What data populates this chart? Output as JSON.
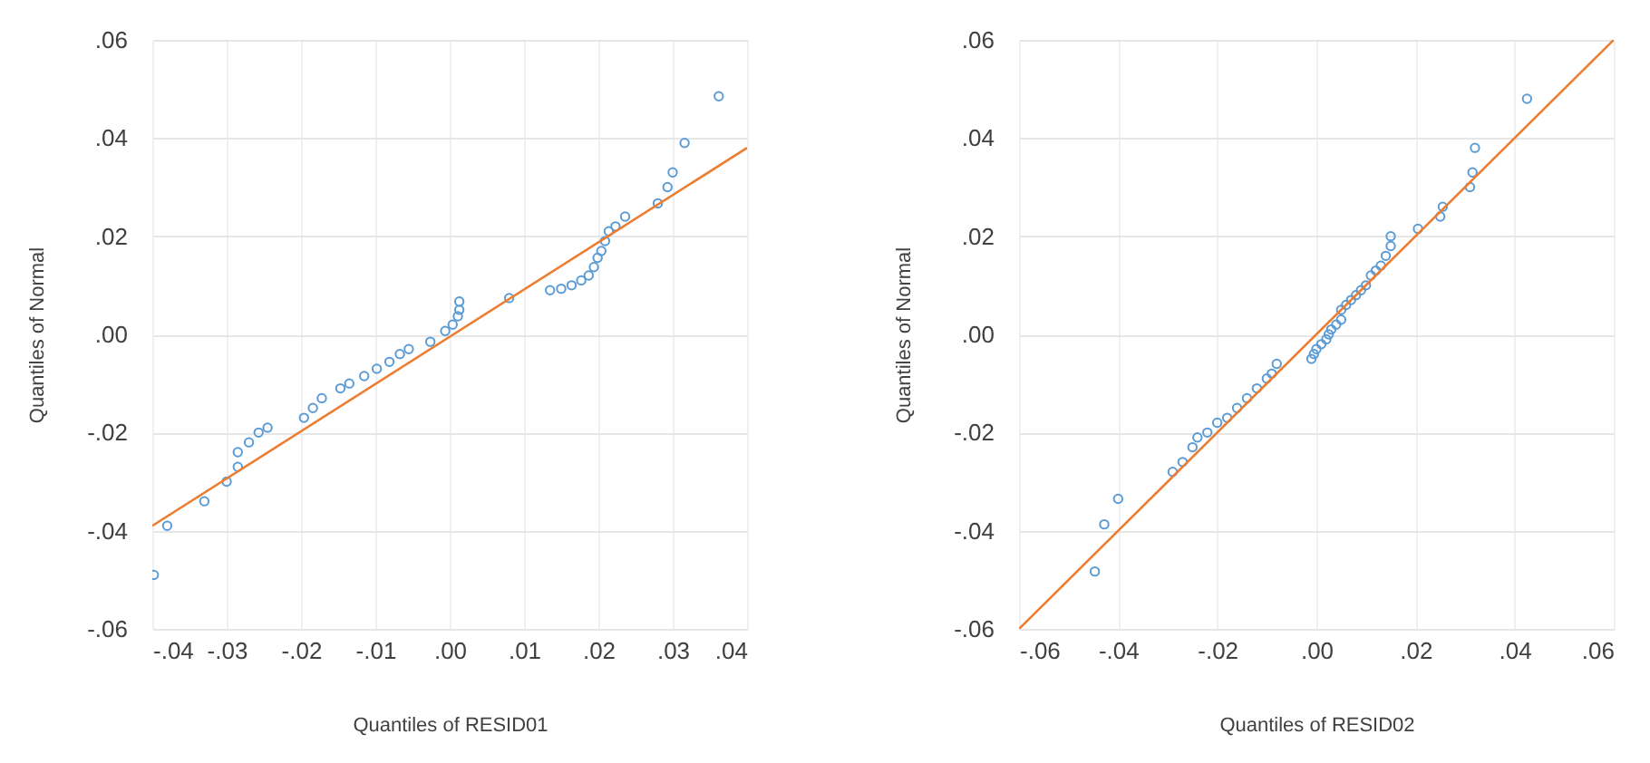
{
  "chart_data": [
    {
      "type": "scatter",
      "xlabel": "Quantiles of RESID01",
      "ylabel": "Quantiles of Normal",
      "xlim": [
        -0.04,
        0.04
      ],
      "ylim": [
        -0.06,
        0.06
      ],
      "xticks": [
        {
          "value": -0.04,
          "label": "-.04"
        },
        {
          "value": -0.03,
          "label": "-.03"
        },
        {
          "value": -0.02,
          "label": "-.02"
        },
        {
          "value": -0.01,
          "label": "-.01"
        },
        {
          "value": 0,
          "label": ".00"
        },
        {
          "value": 0.01,
          "label": ".01"
        },
        {
          "value": 0.02,
          "label": ".02"
        },
        {
          "value": 0.03,
          "label": ".03"
        },
        {
          "value": 0.04,
          "label": ".04"
        }
      ],
      "yticks": [
        {
          "value": -0.06,
          "label": "-.06"
        },
        {
          "value": -0.04,
          "label": "-.04"
        },
        {
          "value": -0.02,
          "label": "-.02"
        },
        {
          "value": 0,
          "label": ".00"
        },
        {
          "value": 0.02,
          "label": ".02"
        },
        {
          "value": 0.04,
          "label": ".04"
        },
        {
          "value": 0.06,
          "label": ".06"
        }
      ],
      "grid": true,
      "series": [
        {
          "marker": "circle",
          "color": "#5b9bd5",
          "x": [
            -0.0398,
            -0.038,
            -0.033,
            -0.03,
            -0.0285,
            -0.0285,
            -0.027,
            -0.0257,
            -0.0245,
            -0.0196,
            -0.0184,
            -0.0172,
            -0.0147,
            -0.0135,
            -0.0115,
            -0.0098,
            -0.0081,
            -0.0067,
            -0.0055,
            -0.0026,
            -0.0006,
            0.0004,
            0.0011,
            0.0013,
            0.0013,
            0.008,
            0.0135,
            0.015,
            0.0164,
            0.0177,
            0.0187,
            0.0194,
            0.0199,
            0.0204,
            0.0209,
            0.0214,
            0.0223,
            0.0236,
            0.028,
            0.0293,
            0.03,
            0.0316,
            0.0362
          ],
          "values": [
            -0.049,
            -0.039,
            -0.034,
            -0.03,
            -0.027,
            -0.024,
            -0.022,
            -0.02,
            -0.019,
            -0.017,
            -0.015,
            -0.013,
            -0.011,
            -0.01,
            -0.0085,
            -0.007,
            -0.0056,
            -0.004,
            -0.003,
            -0.0015,
            0.0007,
            0.002,
            0.0037,
            0.005,
            0.0067,
            0.0074,
            0.009,
            0.0093,
            0.01,
            0.011,
            0.012,
            0.0137,
            0.0156,
            0.017,
            0.019,
            0.021,
            0.022,
            0.024,
            0.0267,
            0.03,
            0.033,
            0.039,
            0.0485
          ]
        },
        {
          "type": "line",
          "color": "#ed7d31",
          "x": [
            -0.04,
            0.04
          ],
          "values": [
            -0.039,
            0.038
          ]
        }
      ]
    },
    {
      "type": "scatter",
      "xlabel": "Quantiles of RESID02",
      "ylabel": "Quantiles of Normal",
      "xlim": [
        -0.06,
        0.06
      ],
      "ylim": [
        -0.06,
        0.06
      ],
      "xticks": [
        {
          "value": -0.06,
          "label": "-.06"
        },
        {
          "value": -0.04,
          "label": "-.04"
        },
        {
          "value": -0.02,
          "label": "-.02"
        },
        {
          "value": 0,
          "label": ".00"
        },
        {
          "value": 0.02,
          "label": ".02"
        },
        {
          "value": 0.04,
          "label": ".04"
        },
        {
          "value": 0.06,
          "label": ".06"
        }
      ],
      "yticks": [
        {
          "value": -0.06,
          "label": "-.06"
        },
        {
          "value": -0.04,
          "label": "-.04"
        },
        {
          "value": -0.02,
          "label": "-.02"
        },
        {
          "value": 0,
          "label": ".00"
        },
        {
          "value": 0.02,
          "label": ".02"
        },
        {
          "value": 0.04,
          "label": ".04"
        },
        {
          "value": 0.06,
          "label": ".06"
        }
      ],
      "grid": true,
      "series": [
        {
          "marker": "circle",
          "color": "#5b9bd5",
          "x": [
            -0.0447,
            -0.0428,
            -0.04,
            -0.029,
            -0.027,
            -0.025,
            -0.024,
            -0.022,
            -0.02,
            -0.018,
            -0.016,
            -0.014,
            -0.012,
            -0.01,
            -0.009,
            -0.008,
            -0.001,
            -0.0005,
            0.0,
            0.001,
            0.002,
            0.0025,
            0.003,
            0.004,
            0.005,
            0.005,
            0.006,
            0.007,
            0.008,
            0.009,
            0.01,
            0.011,
            0.012,
            0.013,
            0.014,
            0.015,
            0.015,
            0.0205,
            0.025,
            0.0255,
            0.031,
            0.0315,
            0.032,
            0.0425
          ],
          "values": [
            -0.0483,
            -0.0387,
            -0.0335,
            -0.028,
            -0.026,
            -0.023,
            -0.021,
            -0.02,
            -0.018,
            -0.017,
            -0.015,
            -0.013,
            -0.011,
            -0.009,
            -0.008,
            -0.006,
            -0.005,
            -0.004,
            -0.003,
            -0.002,
            -0.001,
            0.0,
            0.001,
            0.002,
            0.003,
            0.005,
            0.006,
            0.007,
            0.008,
            0.009,
            0.01,
            0.012,
            0.013,
            0.014,
            0.016,
            0.018,
            0.02,
            0.0215,
            0.024,
            0.026,
            0.03,
            0.033,
            0.038,
            0.048
          ]
        },
        {
          "type": "line",
          "color": "#ed7d31",
          "x": [
            -0.06,
            0.06
          ],
          "values": [
            -0.06,
            0.06
          ]
        }
      ]
    }
  ]
}
